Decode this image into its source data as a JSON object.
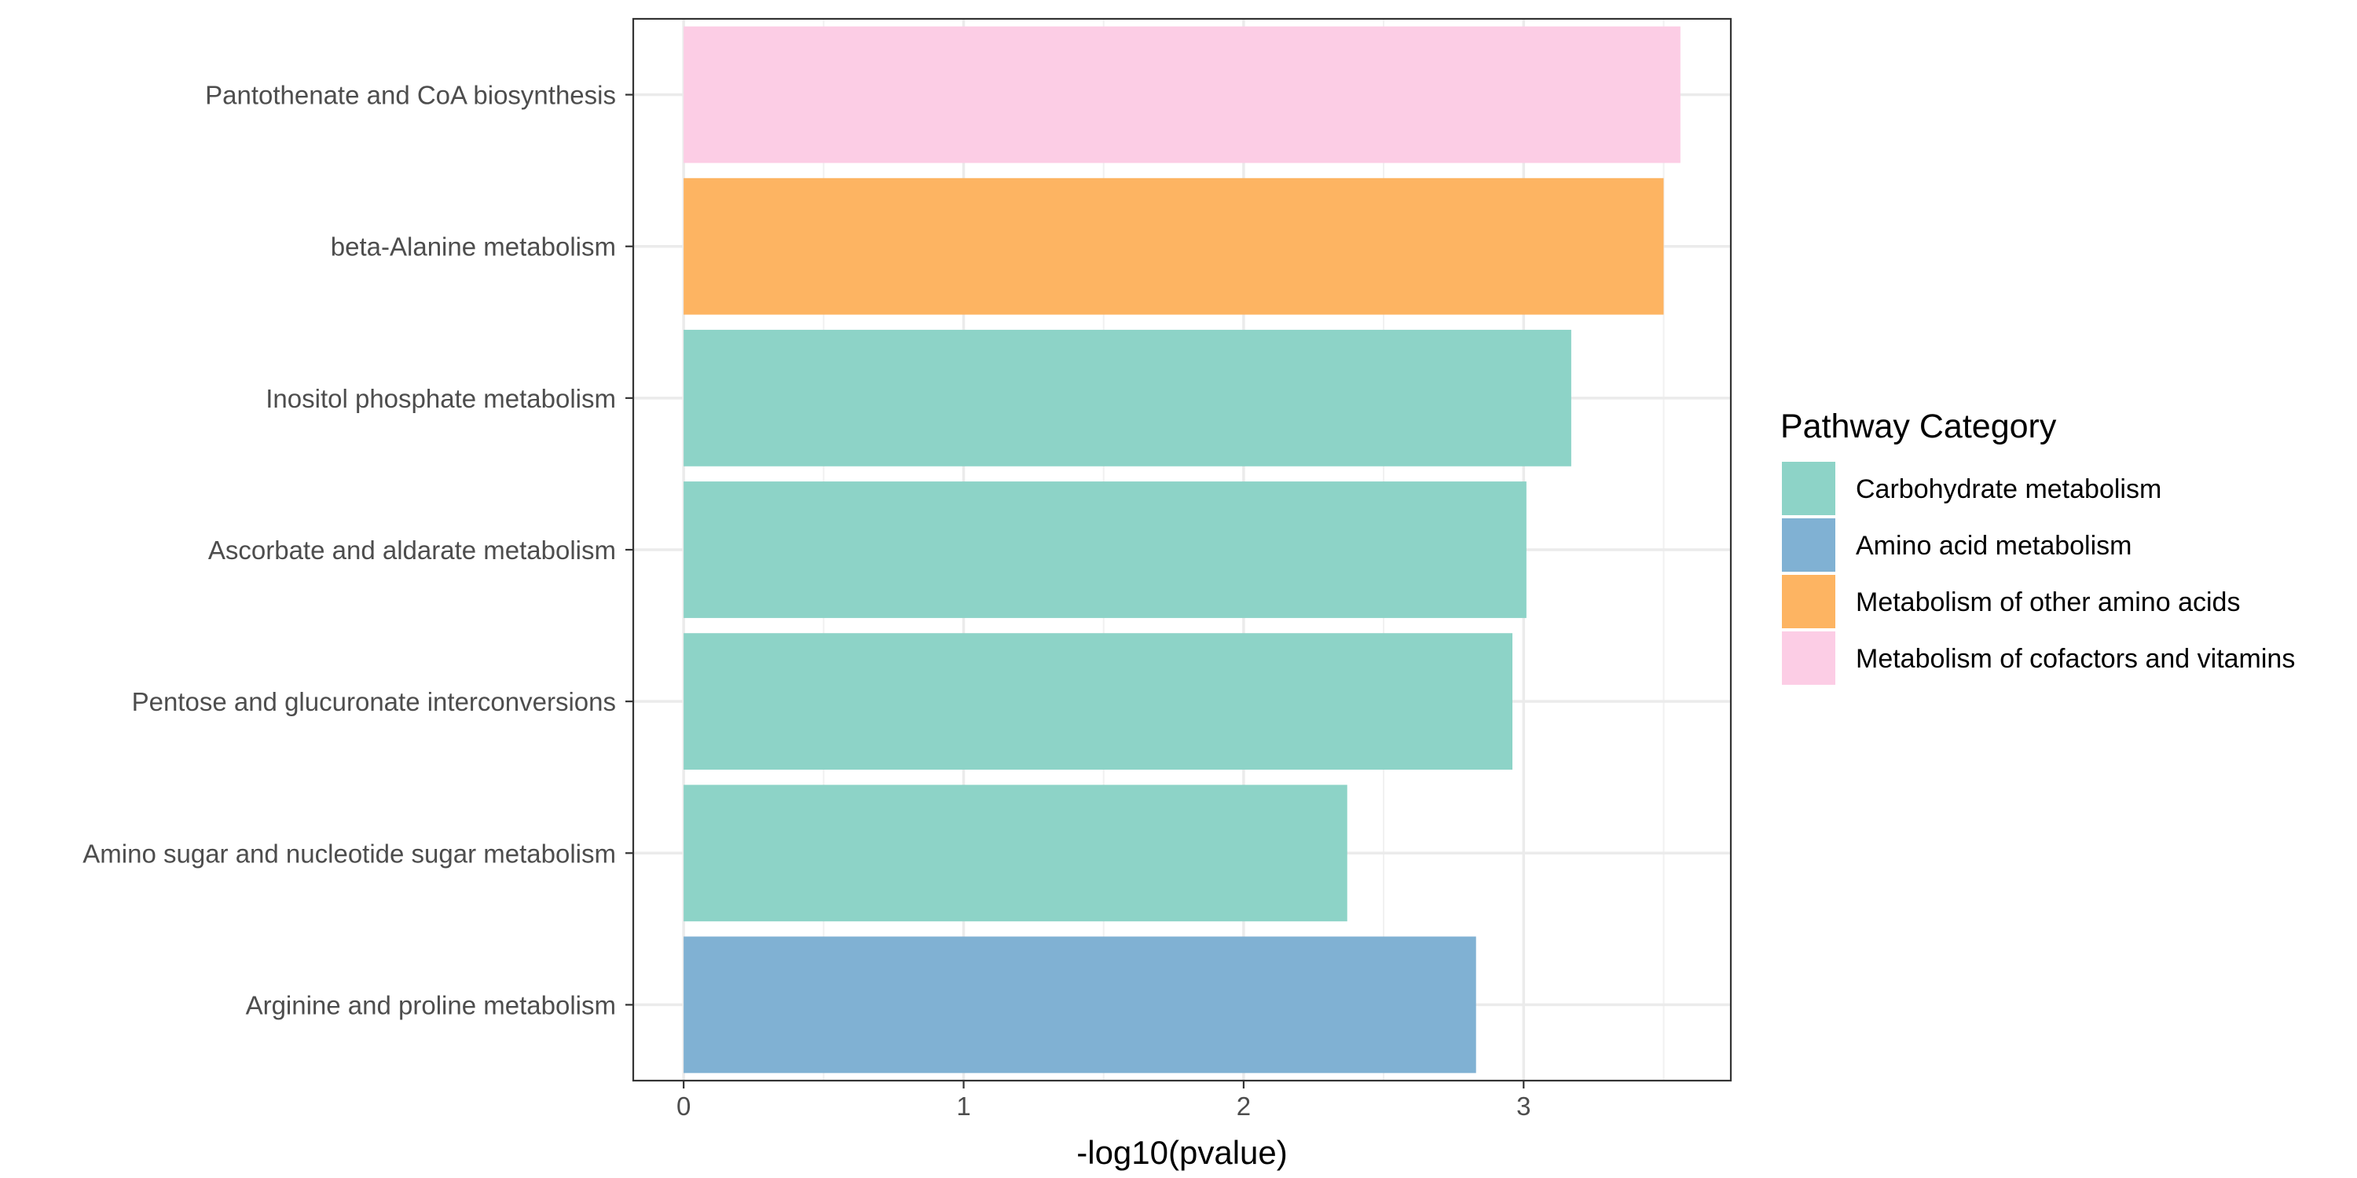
{
  "chart_data": {
    "type": "bar",
    "orientation": "horizontal",
    "categories": [
      "Pantothenate and CoA biosynthesis",
      "beta-Alanine metabolism",
      "Inositol phosphate metabolism",
      "Ascorbate and aldarate metabolism",
      "Pentose and glucuronate interconversions",
      "Amino sugar and nucleotide sugar metabolism",
      "Arginine and proline metabolism"
    ],
    "values": [
      3.56,
      3.5,
      3.17,
      3.01,
      2.96,
      2.37,
      2.83
    ],
    "bar_category": [
      "Metabolism of cofactors and vitamins",
      "Metabolism of other amino acids",
      "Carbohydrate metabolism",
      "Carbohydrate metabolism",
      "Carbohydrate metabolism",
      "Carbohydrate metabolism",
      "Amino acid metabolism"
    ],
    "xlabel": "-log10(pvalue)",
    "ylabel": "",
    "xlim": [
      -0.18,
      3.74
    ],
    "xticks": [
      0,
      1,
      2,
      3
    ],
    "grid": true,
    "legend": {
      "title": "Pathway Category",
      "placement": "right",
      "entries": [
        {
          "name": "Carbohydrate metabolism",
          "color": "#8dd3c7"
        },
        {
          "name": "Amino acid metabolism",
          "color": "#80b1d3"
        },
        {
          "name": "Metabolism of other amino acids",
          "color": "#fdb462"
        },
        {
          "name": "Metabolism of cofactors and vitamins",
          "color": "#fccde5"
        }
      ]
    }
  }
}
